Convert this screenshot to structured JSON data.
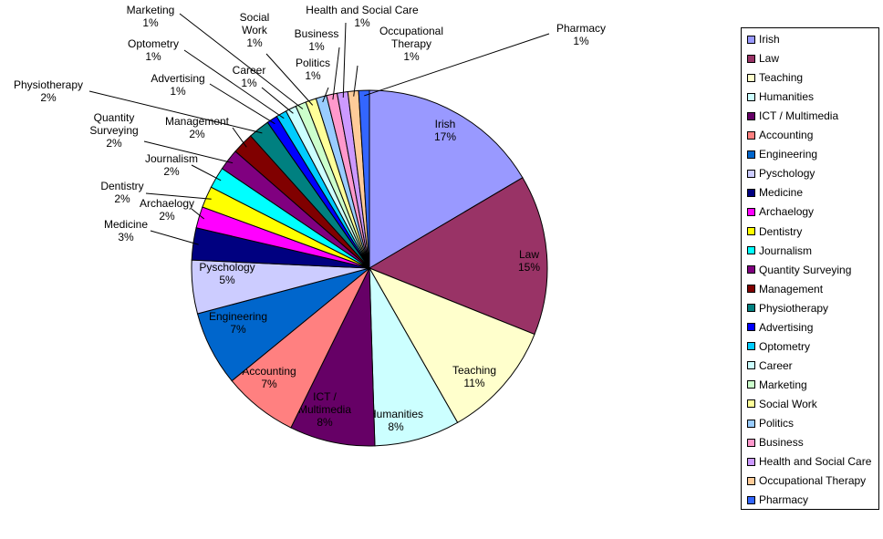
{
  "chart_data": {
    "type": "pie",
    "title": "",
    "legend_position": "right",
    "slices": [
      {
        "name": "Irish",
        "value": 17,
        "label": "17%",
        "color": "#9999ff"
      },
      {
        "name": "Law",
        "value": 15,
        "label": "15%",
        "color": "#993366"
      },
      {
        "name": "Teaching",
        "value": 11,
        "label": "11%",
        "color": "#ffffcc"
      },
      {
        "name": "Humanities",
        "value": 8,
        "label": "8%",
        "color": "#ccffff"
      },
      {
        "name": "ICT / Multimedia",
        "value": 8,
        "label": "8%",
        "color": "#660066"
      },
      {
        "name": "Accounting",
        "value": 7,
        "label": "7%",
        "color": "#ff8080"
      },
      {
        "name": "Engineering",
        "value": 7,
        "label": "7%",
        "color": "#0066cc"
      },
      {
        "name": "Pyschology",
        "value": 5,
        "label": "5%",
        "color": "#ccccff"
      },
      {
        "name": "Medicine",
        "value": 3,
        "label": "3%",
        "color": "#000080"
      },
      {
        "name": "Archaelogy",
        "value": 2,
        "label": "2%",
        "color": "#ff00ff"
      },
      {
        "name": "Dentistry",
        "value": 2,
        "label": "2%",
        "color": "#ffff00"
      },
      {
        "name": "Journalism",
        "value": 2,
        "label": "2%",
        "color": "#00ffff"
      },
      {
        "name": "Quantity Surveying",
        "value": 2,
        "label": "2%",
        "color": "#800080"
      },
      {
        "name": "Management",
        "value": 2,
        "label": "2%",
        "color": "#800000"
      },
      {
        "name": "Physiotherapy",
        "value": 2,
        "label": "2%",
        "color": "#008080"
      },
      {
        "name": "Advertising",
        "value": 1,
        "label": "1%",
        "color": "#0000ff"
      },
      {
        "name": "Optometry",
        "value": 1,
        "label": "1%",
        "color": "#00ccff"
      },
      {
        "name": "Career",
        "value": 1,
        "label": "1%",
        "color": "#ccffff"
      },
      {
        "name": "Marketing",
        "value": 1,
        "label": "1%",
        "color": "#ccffcc"
      },
      {
        "name": "Social Work",
        "value": 1,
        "label": "1%",
        "color": "#ffff99"
      },
      {
        "name": "Politics",
        "value": 1,
        "label": "1%",
        "color": "#99ccff"
      },
      {
        "name": "Business",
        "value": 1,
        "label": "1%",
        "color": "#ff99cc"
      },
      {
        "name": "Health and Social Care",
        "value": 1,
        "label": "1%",
        "color": "#cc99ff"
      },
      {
        "name": "Occupational Therapy",
        "value": 1,
        "label": "1%",
        "color": "#ffcc99"
      },
      {
        "name": "Pharmacy",
        "value": 1,
        "label": "1%",
        "color": "#3366ff"
      }
    ]
  }
}
